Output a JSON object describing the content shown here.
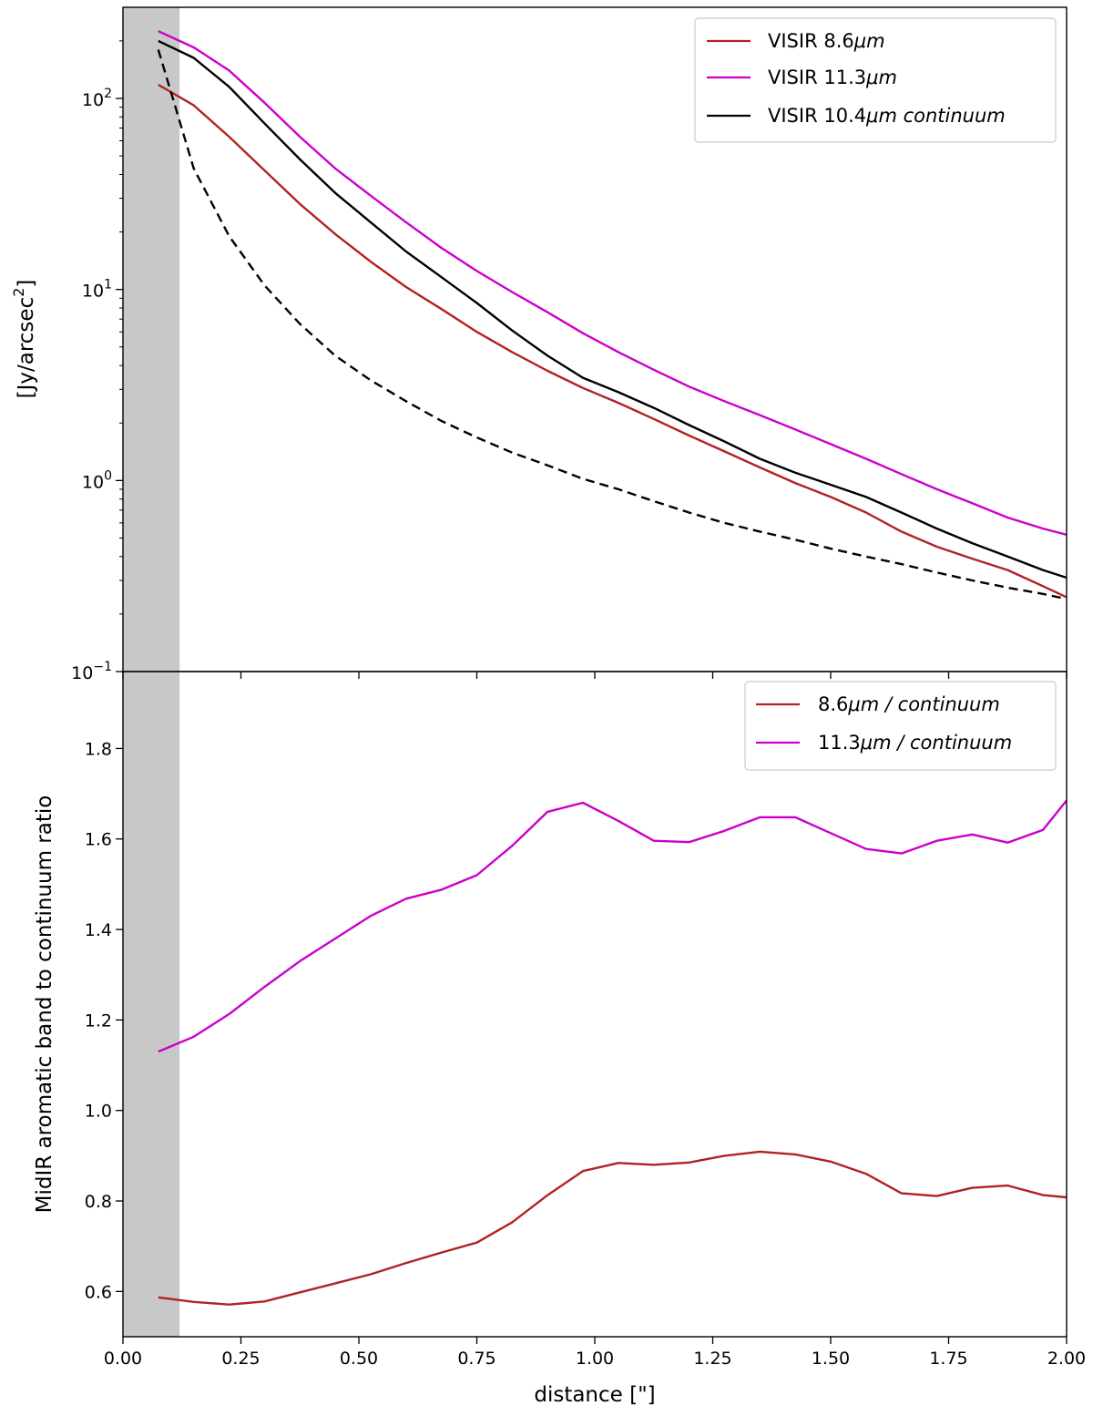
{
  "chart_data": [
    {
      "type": "line",
      "panel": "top",
      "yscale": "log",
      "ylabel": "[Jy/arcsec^2]",
      "ylabel_base": "[Jy/arcsec",
      "ylabel_sup": "2",
      "ylabel_end": "]",
      "xlim": [
        0.0,
        2.0
      ],
      "ylim": [
        0.1,
        300
      ],
      "yticks": [
        {
          "value": 100,
          "label_base": "10",
          "label_exp": "2"
        },
        {
          "value": 10,
          "label_base": "10",
          "label_exp": "1"
        },
        {
          "value": 1,
          "label_base": "10",
          "label_exp": "0"
        },
        {
          "value": 0.1,
          "label_base": "10",
          "label_exp": "−1"
        }
      ],
      "shaded_region": {
        "x0": 0.0,
        "x1": 0.12,
        "color": "#c8c8c8"
      },
      "legend": {
        "placement": "top-right"
      },
      "series": [
        {
          "name": "VISIR 8.6μm",
          "legend_label": "VISIR 8.6",
          "legend_unit": "μm",
          "color": "#b22222",
          "dashed": false,
          "x": [
            0.075,
            0.15,
            0.225,
            0.3,
            0.375,
            0.45,
            0.525,
            0.6,
            0.675,
            0.75,
            0.825,
            0.9,
            0.975,
            1.05,
            1.125,
            1.2,
            1.275,
            1.35,
            1.425,
            1.5,
            1.575,
            1.65,
            1.725,
            1.8,
            1.875,
            1.95,
            2.0
          ],
          "values": [
            118,
            92,
            63,
            42,
            28,
            19.5,
            14,
            10.3,
            7.9,
            6.0,
            4.7,
            3.75,
            3.05,
            2.55,
            2.1,
            1.72,
            1.42,
            1.17,
            0.97,
            0.82,
            0.68,
            0.54,
            0.45,
            0.39,
            0.34,
            0.28,
            0.245
          ]
        },
        {
          "name": "VISIR 11.3μm",
          "legend_label": "VISIR 11.3",
          "legend_unit": "μm",
          "color": "#cc00cc",
          "dashed": false,
          "x": [
            0.075,
            0.15,
            0.225,
            0.3,
            0.375,
            0.45,
            0.525,
            0.6,
            0.675,
            0.75,
            0.825,
            0.9,
            0.975,
            1.05,
            1.125,
            1.2,
            1.275,
            1.35,
            1.425,
            1.5,
            1.575,
            1.65,
            1.725,
            1.8,
            1.875,
            1.95,
            2.0
          ],
          "values": [
            225,
            185,
            140,
            95,
            63,
            43,
            31,
            22.5,
            16.5,
            12.5,
            9.7,
            7.6,
            5.9,
            4.7,
            3.8,
            3.1,
            2.6,
            2.2,
            1.85,
            1.55,
            1.3,
            1.08,
            0.9,
            0.76,
            0.64,
            0.56,
            0.52
          ]
        },
        {
          "name": "VISIR 10.4μm continuum",
          "legend_label": "VISIR 10.4",
          "legend_unit": "μm continuum",
          "color": "#000000",
          "dashed": false,
          "x": [
            0.075,
            0.15,
            0.225,
            0.3,
            0.375,
            0.45,
            0.525,
            0.6,
            0.675,
            0.75,
            0.825,
            0.9,
            0.975,
            1.05,
            1.125,
            1.2,
            1.275,
            1.35,
            1.425,
            1.5,
            1.575,
            1.65,
            1.725,
            1.8,
            1.875,
            1.95,
            2.0
          ],
          "values": [
            200,
            163,
            115,
            74,
            48,
            32,
            22.5,
            15.8,
            11.6,
            8.5,
            6.1,
            4.5,
            3.45,
            2.9,
            2.4,
            1.95,
            1.6,
            1.3,
            1.1,
            0.95,
            0.82,
            0.68,
            0.56,
            0.47,
            0.4,
            0.34,
            0.31
          ]
        },
        {
          "name": "model (dashed)",
          "color": "#000000",
          "dashed": true,
          "in_legend": false,
          "x": [
            0.075,
            0.15,
            0.225,
            0.3,
            0.375,
            0.45,
            0.525,
            0.6,
            0.675,
            0.75,
            0.825,
            0.9,
            0.975,
            1.05,
            1.125,
            1.2,
            1.275,
            1.35,
            1.425,
            1.5,
            1.575,
            1.65,
            1.725,
            1.8,
            1.875,
            1.95,
            2.0
          ],
          "values": [
            180,
            43,
            19,
            10.5,
            6.6,
            4.5,
            3.35,
            2.6,
            2.05,
            1.68,
            1.4,
            1.2,
            1.02,
            0.9,
            0.78,
            0.68,
            0.6,
            0.54,
            0.49,
            0.44,
            0.4,
            0.365,
            0.33,
            0.3,
            0.275,
            0.255,
            0.24
          ]
        }
      ]
    },
    {
      "type": "line",
      "panel": "bottom",
      "yscale": "linear",
      "xlabel": "distance [\"]",
      "ylabel": "MidIR aromatic band to continuum ratio",
      "xlim": [
        0.0,
        2.0
      ],
      "ylim": [
        0.5,
        1.97
      ],
      "xticks": [
        "0.00",
        "0.25",
        "0.50",
        "0.75",
        "1.00",
        "1.25",
        "1.50",
        "1.75",
        "2.00"
      ],
      "yticks": [
        "0.6",
        "0.8",
        "1.0",
        "1.2",
        "1.4",
        "1.6",
        "1.8"
      ],
      "shaded_region": {
        "x0": 0.0,
        "x1": 0.12,
        "color": "#c8c8c8"
      },
      "legend": {
        "placement": "top-right"
      },
      "series": [
        {
          "name": "8.6μm / continuum",
          "legend_label": "8.6",
          "legend_unit": "μm / continuum",
          "color": "#b22222",
          "x": [
            0.075,
            0.15,
            0.225,
            0.3,
            0.375,
            0.45,
            0.525,
            0.6,
            0.675,
            0.75,
            0.825,
            0.9,
            0.975,
            1.05,
            1.125,
            1.2,
            1.275,
            1.35,
            1.425,
            1.5,
            1.575,
            1.65,
            1.725,
            1.8,
            1.875,
            1.95,
            2.0
          ],
          "values": [
            0.587,
            0.577,
            0.571,
            0.578,
            0.598,
            0.618,
            0.638,
            0.663,
            0.686,
            0.708,
            0.753,
            0.813,
            0.866,
            0.884,
            0.88,
            0.885,
            0.9,
            0.909,
            0.903,
            0.887,
            0.86,
            0.817,
            0.811,
            0.829,
            0.834,
            0.813,
            0.808
          ]
        },
        {
          "name": "11.3μm / continuum",
          "legend_label": "11.3",
          "legend_unit": "μm / continuum",
          "color": "#cc00cc",
          "x": [
            0.075,
            0.15,
            0.225,
            0.3,
            0.375,
            0.45,
            0.525,
            0.6,
            0.675,
            0.75,
            0.825,
            0.9,
            0.975,
            1.05,
            1.125,
            1.2,
            1.275,
            1.35,
            1.425,
            1.5,
            1.575,
            1.65,
            1.725,
            1.8,
            1.875,
            1.95,
            2.0
          ],
          "values": [
            1.13,
            1.163,
            1.213,
            1.273,
            1.33,
            1.38,
            1.43,
            1.468,
            1.488,
            1.52,
            1.585,
            1.66,
            1.68,
            1.64,
            1.596,
            1.593,
            1.618,
            1.648,
            1.648,
            1.613,
            1.578,
            1.568,
            1.596,
            1.61,
            1.592,
            1.62,
            1.685
          ]
        }
      ]
    }
  ]
}
